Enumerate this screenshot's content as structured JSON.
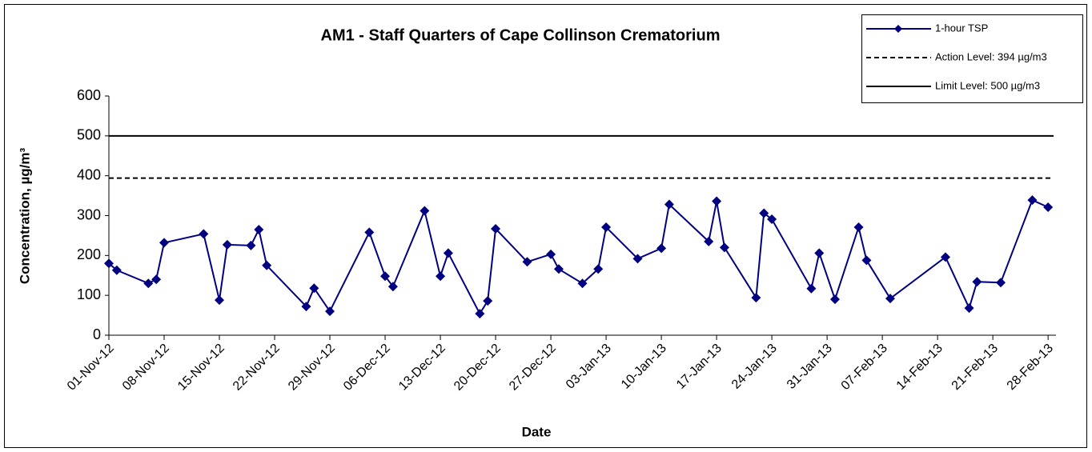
{
  "chart_data": {
    "type": "line",
    "title": "AM1 - Staff Quarters of Cape Collinson Crematorium",
    "x_label": "Date",
    "y_label": "Concentration, µg/m³",
    "xlim": [
      "2012-11-01",
      "2013-03-01"
    ],
    "xticks": [
      {
        "value": "2012-11-01",
        "label": "01-Nov-12"
      },
      {
        "value": "2012-11-08",
        "label": "08-Nov-12"
      },
      {
        "value": "2012-11-15",
        "label": "15-Nov-12"
      },
      {
        "value": "2012-11-22",
        "label": "22-Nov-12"
      },
      {
        "value": "2012-11-29",
        "label": "29-Nov-12"
      },
      {
        "value": "2012-12-06",
        "label": "06-Dec-12"
      },
      {
        "value": "2012-12-13",
        "label": "13-Dec-12"
      },
      {
        "value": "2012-12-20",
        "label": "20-Dec-12"
      },
      {
        "value": "2012-12-27",
        "label": "27-Dec-12"
      },
      {
        "value": "2013-01-03",
        "label": "03-Jan-13"
      },
      {
        "value": "2013-01-10",
        "label": "10-Jan-13"
      },
      {
        "value": "2013-01-17",
        "label": "17-Jan-13"
      },
      {
        "value": "2013-01-24",
        "label": "24-Jan-13"
      },
      {
        "value": "2013-01-31",
        "label": "31-Jan-13"
      },
      {
        "value": "2013-02-07",
        "label": "07-Feb-13"
      },
      {
        "value": "2013-02-14",
        "label": "14-Feb-13"
      },
      {
        "value": "2013-02-21",
        "label": "21-Feb-13"
      },
      {
        "value": "2013-02-28",
        "label": "28-Feb-13"
      }
    ],
    "ylim": [
      0,
      600
    ],
    "yticks": [
      0,
      100,
      200,
      300,
      400,
      500,
      600
    ],
    "grid": false,
    "legend": "top-right",
    "x": [
      "2012-11-01",
      "2012-11-02",
      "2012-11-06",
      "2012-11-07",
      "2012-11-08",
      "2012-11-13",
      "2012-11-15",
      "2012-11-16",
      "2012-11-19",
      "2012-11-20",
      "2012-11-21",
      "2012-11-26",
      "2012-11-27",
      "2012-11-29",
      "2012-12-04",
      "2012-12-06",
      "2012-12-07",
      "2012-12-11",
      "2012-12-13",
      "2012-12-14",
      "2012-12-18",
      "2012-12-19",
      "2012-12-20",
      "2012-12-24",
      "2012-12-27",
      "2012-12-28",
      "2012-12-31",
      "2013-01-02",
      "2013-01-03",
      "2013-01-07",
      "2013-01-10",
      "2013-01-11",
      "2013-01-16",
      "2013-01-17",
      "2013-01-18",
      "2013-01-22",
      "2013-01-23",
      "2013-01-24",
      "2013-01-29",
      "2013-01-30",
      "2013-02-01",
      "2013-02-04",
      "2013-02-05",
      "2013-02-08",
      "2013-02-15",
      "2013-02-18",
      "2013-02-19",
      "2013-02-22",
      "2013-02-26",
      "2013-02-28"
    ],
    "series": [
      {
        "name": "1-hour TSP",
        "color": "#000080",
        "values": [
          180,
          163,
          130,
          140,
          232,
          254,
          88,
          227,
          225,
          265,
          175,
          72,
          118,
          60,
          258,
          148,
          122,
          312,
          148,
          206,
          54,
          86,
          267,
          184,
          203,
          166,
          130,
          166,
          271,
          192,
          218,
          328,
          235,
          336,
          220,
          94,
          306,
          291,
          117,
          206,
          90,
          271,
          188,
          92,
          196,
          68,
          134,
          132,
          339,
          321
        ]
      }
    ],
    "thresholds": [
      {
        "name": "Action Level: 394 µg/m3",
        "value": 394,
        "style": "dashed",
        "color": "#000000"
      },
      {
        "name": "Limit Level: 500 µg/m3",
        "value": 500,
        "style": "solid",
        "color": "#000000"
      }
    ]
  }
}
